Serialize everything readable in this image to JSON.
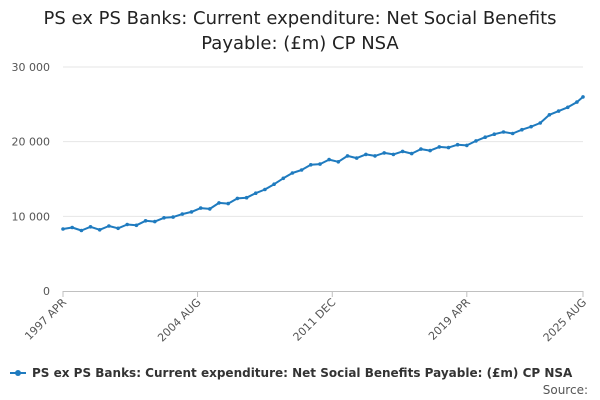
{
  "chart_data": {
    "type": "line",
    "title_lines": [
      "PS ex PS Banks: Current expenditure: Net Social Benefits",
      "Payable: (£m) CP NSA"
    ],
    "xlabel": "",
    "ylabel": "",
    "ylim": [
      0,
      30000
    ],
    "yticks": [
      {
        "value": 0,
        "label": "0"
      },
      {
        "value": 10000,
        "label": "10 000"
      },
      {
        "value": 20000,
        "label": "20 000"
      },
      {
        "value": 30000,
        "label": "30 000"
      }
    ],
    "xlim": [
      1997.25,
      2025.58
    ],
    "xticks": [
      {
        "value": 1997.25,
        "label": "1997 APR"
      },
      {
        "value": 2004.58,
        "label": "2004 AUG"
      },
      {
        "value": 2011.92,
        "label": "2011 DEC"
      },
      {
        "value": 2019.25,
        "label": "2019 APR"
      },
      {
        "value": 2025.58,
        "label": "2025 AUG"
      }
    ],
    "series": [
      {
        "name": "PS ex PS Banks: Current expenditure: Net Social Benefits Payable: (£m) CP NSA",
        "color": "#1f7bbf",
        "x": [
          1997.25,
          1997.75,
          1998.25,
          1998.75,
          1999.25,
          1999.75,
          2000.25,
          2000.75,
          2001.25,
          2001.75,
          2002.25,
          2002.75,
          2003.25,
          2003.75,
          2004.25,
          2004.75,
          2005.25,
          2005.75,
          2006.25,
          2006.75,
          2007.25,
          2007.75,
          2008.25,
          2008.75,
          2009.25,
          2009.75,
          2010.25,
          2010.75,
          2011.25,
          2011.75,
          2012.25,
          2012.75,
          2013.25,
          2013.75,
          2014.25,
          2014.75,
          2015.25,
          2015.75,
          2016.25,
          2016.75,
          2017.25,
          2017.75,
          2018.25,
          2018.75,
          2019.25,
          2019.75,
          2020.25,
          2020.75,
          2021.25,
          2021.75,
          2022.25,
          2022.75,
          2023.25,
          2023.75,
          2024.25,
          2024.75,
          2025.25,
          2025.58
        ],
        "values": [
          8300,
          8500,
          8100,
          8600,
          8200,
          8700,
          8400,
          8900,
          8800,
          9400,
          9300,
          9800,
          9900,
          10300,
          10600,
          11100,
          11000,
          11800,
          11700,
          12400,
          12500,
          13100,
          13600,
          14300,
          15100,
          15800,
          16200,
          16900,
          17000,
          17600,
          17300,
          18100,
          17800,
          18300,
          18100,
          18500,
          18300,
          18700,
          18400,
          19000,
          18800,
          19300,
          19200,
          19600,
          19500,
          20100,
          20600,
          21000,
          21300,
          21100,
          21600,
          22000,
          22500,
          23600,
          24100,
          24600,
          25300,
          26000
        ]
      }
    ]
  },
  "legend": {
    "label": "PS ex PS Banks: Current expenditure: Net Social Benefits Payable: (£m) CP NSA"
  },
  "footer": {
    "source_label": "Source:"
  }
}
